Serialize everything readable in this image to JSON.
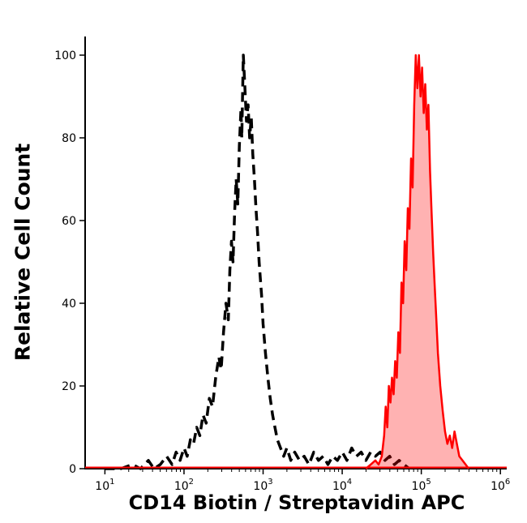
{
  "chart_data": {
    "type": "area",
    "title": "",
    "xlabel": "CD14 Biotin / Streptavidin APC",
    "ylabel": "Relative Cell Count",
    "grid": false,
    "legend": "none",
    "ylim": [
      0,
      100
    ],
    "x_axis": {
      "scale": "log10",
      "range_log10": [
        1,
        6
      ],
      "ticks": [
        {
          "log10": 1,
          "base": "10",
          "exponent": "1"
        },
        {
          "log10": 2,
          "base": "10",
          "exponent": "2"
        },
        {
          "log10": 3,
          "base": "10",
          "exponent": "3"
        },
        {
          "log10": 4,
          "base": "10",
          "exponent": "4"
        },
        {
          "log10": 5,
          "base": "10",
          "exponent": "5"
        },
        {
          "log10": 6,
          "base": "10",
          "exponent": "6"
        }
      ]
    },
    "y_axis": {
      "ticks": [
        0,
        20,
        40,
        60,
        80,
        100
      ]
    },
    "baseline_color": "#ff0000",
    "axis_color": "#000000",
    "series": [
      {
        "key": "dashed-black-histogram",
        "color": "#000000",
        "dash": "12 7",
        "stroke_width": 3.5,
        "fill": "none",
        "points": [
          [
            1.0,
            0
          ],
          [
            1.2,
            0
          ],
          [
            1.35,
            1
          ],
          [
            1.45,
            0
          ],
          [
            1.55,
            2
          ],
          [
            1.62,
            0
          ],
          [
            1.7,
            1
          ],
          [
            1.78,
            3
          ],
          [
            1.85,
            1
          ],
          [
            1.9,
            4
          ],
          [
            1.95,
            2
          ],
          [
            2.0,
            5
          ],
          [
            2.04,
            3
          ],
          [
            2.08,
            7
          ],
          [
            2.12,
            6
          ],
          [
            2.16,
            10
          ],
          [
            2.2,
            8
          ],
          [
            2.24,
            13
          ],
          [
            2.28,
            11
          ],
          [
            2.32,
            17
          ],
          [
            2.36,
            15
          ],
          [
            2.4,
            22
          ],
          [
            2.44,
            27
          ],
          [
            2.47,
            24
          ],
          [
            2.5,
            33
          ],
          [
            2.53,
            40
          ],
          [
            2.56,
            36
          ],
          [
            2.58,
            48
          ],
          [
            2.6,
            55
          ],
          [
            2.62,
            50
          ],
          [
            2.64,
            62
          ],
          [
            2.66,
            70
          ],
          [
            2.68,
            64
          ],
          [
            2.7,
            78
          ],
          [
            2.72,
            87
          ],
          [
            2.73,
            80
          ],
          [
            2.75,
            100
          ],
          [
            2.77,
            92
          ],
          [
            2.79,
            84
          ],
          [
            2.81,
            88
          ],
          [
            2.83,
            80
          ],
          [
            2.85,
            85
          ],
          [
            2.87,
            76
          ],
          [
            2.89,
            70
          ],
          [
            2.91,
            63
          ],
          [
            2.93,
            57
          ],
          [
            2.95,
            50
          ],
          [
            2.98,
            42
          ],
          [
            3.0,
            35
          ],
          [
            3.03,
            28
          ],
          [
            3.06,
            22
          ],
          [
            3.09,
            17
          ],
          [
            3.12,
            13
          ],
          [
            3.15,
            10
          ],
          [
            3.18,
            7
          ],
          [
            3.22,
            5
          ],
          [
            3.26,
            3
          ],
          [
            3.3,
            5
          ],
          [
            3.35,
            2
          ],
          [
            3.4,
            4
          ],
          [
            3.46,
            2
          ],
          [
            3.52,
            3
          ],
          [
            3.58,
            1
          ],
          [
            3.64,
            4
          ],
          [
            3.7,
            2
          ],
          [
            3.76,
            3
          ],
          [
            3.82,
            1
          ],
          [
            3.88,
            3
          ],
          [
            3.94,
            2
          ],
          [
            4.0,
            4
          ],
          [
            4.06,
            2
          ],
          [
            4.12,
            5
          ],
          [
            4.18,
            3
          ],
          [
            4.24,
            4
          ],
          [
            4.3,
            2
          ],
          [
            4.36,
            4
          ],
          [
            4.42,
            3
          ],
          [
            4.48,
            4
          ],
          [
            4.54,
            2
          ],
          [
            4.6,
            3
          ],
          [
            4.66,
            1
          ],
          [
            4.72,
            2
          ],
          [
            4.78,
            1
          ],
          [
            4.85,
            0
          ]
        ]
      },
      {
        "key": "filled-red-histogram",
        "color": "#ff0000",
        "dash": null,
        "stroke_width": 2.5,
        "fill": "rgba(255,0,0,0.3)",
        "points": [
          [
            4.3,
            0
          ],
          [
            4.36,
            1
          ],
          [
            4.42,
            2
          ],
          [
            4.46,
            1
          ],
          [
            4.5,
            3
          ],
          [
            4.53,
            8
          ],
          [
            4.55,
            15
          ],
          [
            4.57,
            10
          ],
          [
            4.59,
            20
          ],
          [
            4.61,
            16
          ],
          [
            4.63,
            22
          ],
          [
            4.65,
            18
          ],
          [
            4.67,
            26
          ],
          [
            4.69,
            22
          ],
          [
            4.71,
            33
          ],
          [
            4.73,
            28
          ],
          [
            4.75,
            45
          ],
          [
            4.77,
            40
          ],
          [
            4.79,
            55
          ],
          [
            4.81,
            48
          ],
          [
            4.83,
            63
          ],
          [
            4.85,
            58
          ],
          [
            4.87,
            75
          ],
          [
            4.89,
            68
          ],
          [
            4.91,
            88
          ],
          [
            4.93,
            100
          ],
          [
            4.95,
            92
          ],
          [
            4.97,
            100
          ],
          [
            4.99,
            90
          ],
          [
            5.01,
            97
          ],
          [
            5.03,
            86
          ],
          [
            5.05,
            93
          ],
          [
            5.07,
            82
          ],
          [
            5.09,
            88
          ],
          [
            5.11,
            72
          ],
          [
            5.13,
            62
          ],
          [
            5.15,
            52
          ],
          [
            5.17,
            44
          ],
          [
            5.19,
            36
          ],
          [
            5.21,
            28
          ],
          [
            5.24,
            20
          ],
          [
            5.27,
            14
          ],
          [
            5.3,
            9
          ],
          [
            5.33,
            6
          ],
          [
            5.36,
            8
          ],
          [
            5.39,
            5
          ],
          [
            5.42,
            9
          ],
          [
            5.45,
            6
          ],
          [
            5.48,
            3
          ],
          [
            5.52,
            2
          ],
          [
            5.56,
            1
          ],
          [
            5.6,
            0
          ]
        ]
      }
    ]
  }
}
